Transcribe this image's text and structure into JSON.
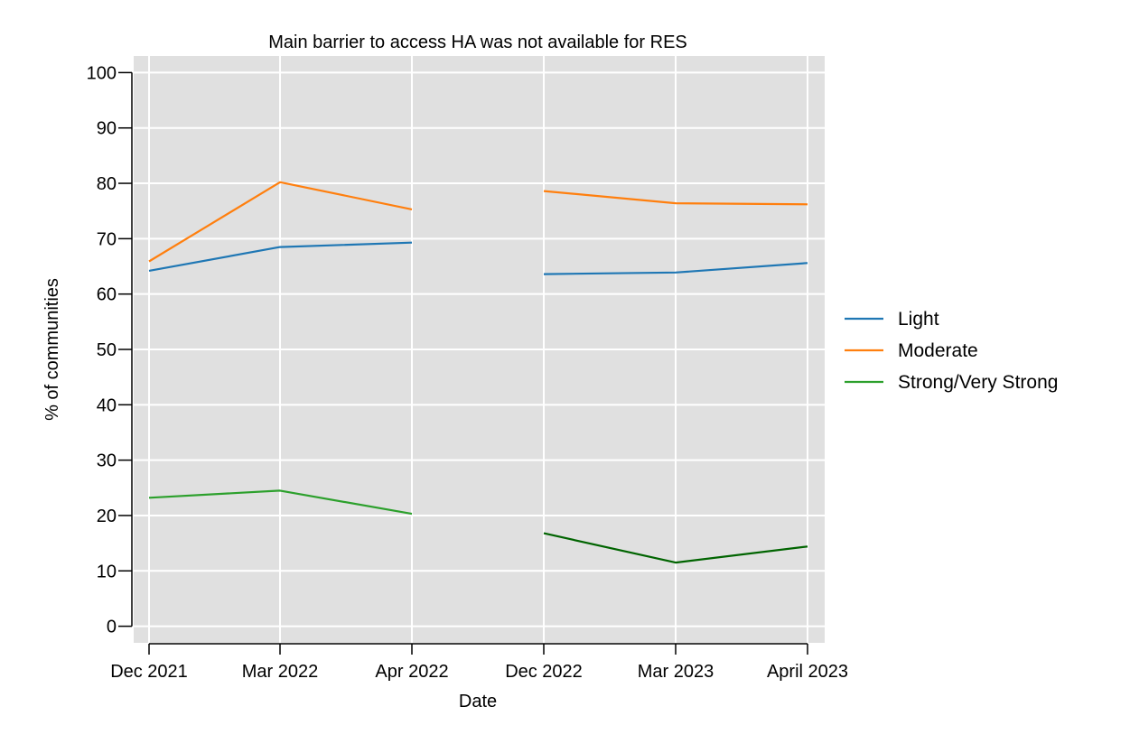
{
  "chart_data": {
    "type": "line",
    "title": "Main barrier to access HA was not available for RES",
    "xlabel": "Date",
    "ylabel": "% of communities",
    "ylim": [
      -3,
      103
    ],
    "yticks": [
      0,
      10,
      20,
      30,
      40,
      50,
      60,
      70,
      80,
      90,
      100
    ],
    "categories": [
      "Dec 2021",
      "Mar 2022",
      "Apr 2022",
      "Dec 2022",
      "Mar 2023",
      "April 2023"
    ],
    "grid": true,
    "background": "#e0e0e0",
    "legend_position": "right",
    "series": [
      {
        "name": "Light",
        "color": "#1f77b4",
        "segments": [
          {
            "start": 0,
            "values": [
              64.2,
              68.5,
              69.3
            ],
            "color": "#1f77b4"
          },
          {
            "start": 3,
            "values": [
              63.6,
              63.9,
              65.6
            ],
            "color": "#1f77b4"
          }
        ]
      },
      {
        "name": "Moderate",
        "color": "#ff7f0e",
        "segments": [
          {
            "start": 0,
            "values": [
              65.9,
              80.2,
              75.3
            ],
            "color": "#ff7f0e"
          },
          {
            "start": 3,
            "values": [
              78.6,
              76.4,
              76.2
            ],
            "color": "#ff7f0e"
          }
        ]
      },
      {
        "name": "Strong/Very Strong",
        "color": "#2ca02c",
        "segments": [
          {
            "start": 0,
            "values": [
              23.2,
              24.5,
              20.3
            ],
            "color": "#2ca02c"
          },
          {
            "start": 3,
            "values": [
              16.8,
              11.5,
              14.4
            ],
            "color": "#006400"
          }
        ]
      }
    ]
  }
}
